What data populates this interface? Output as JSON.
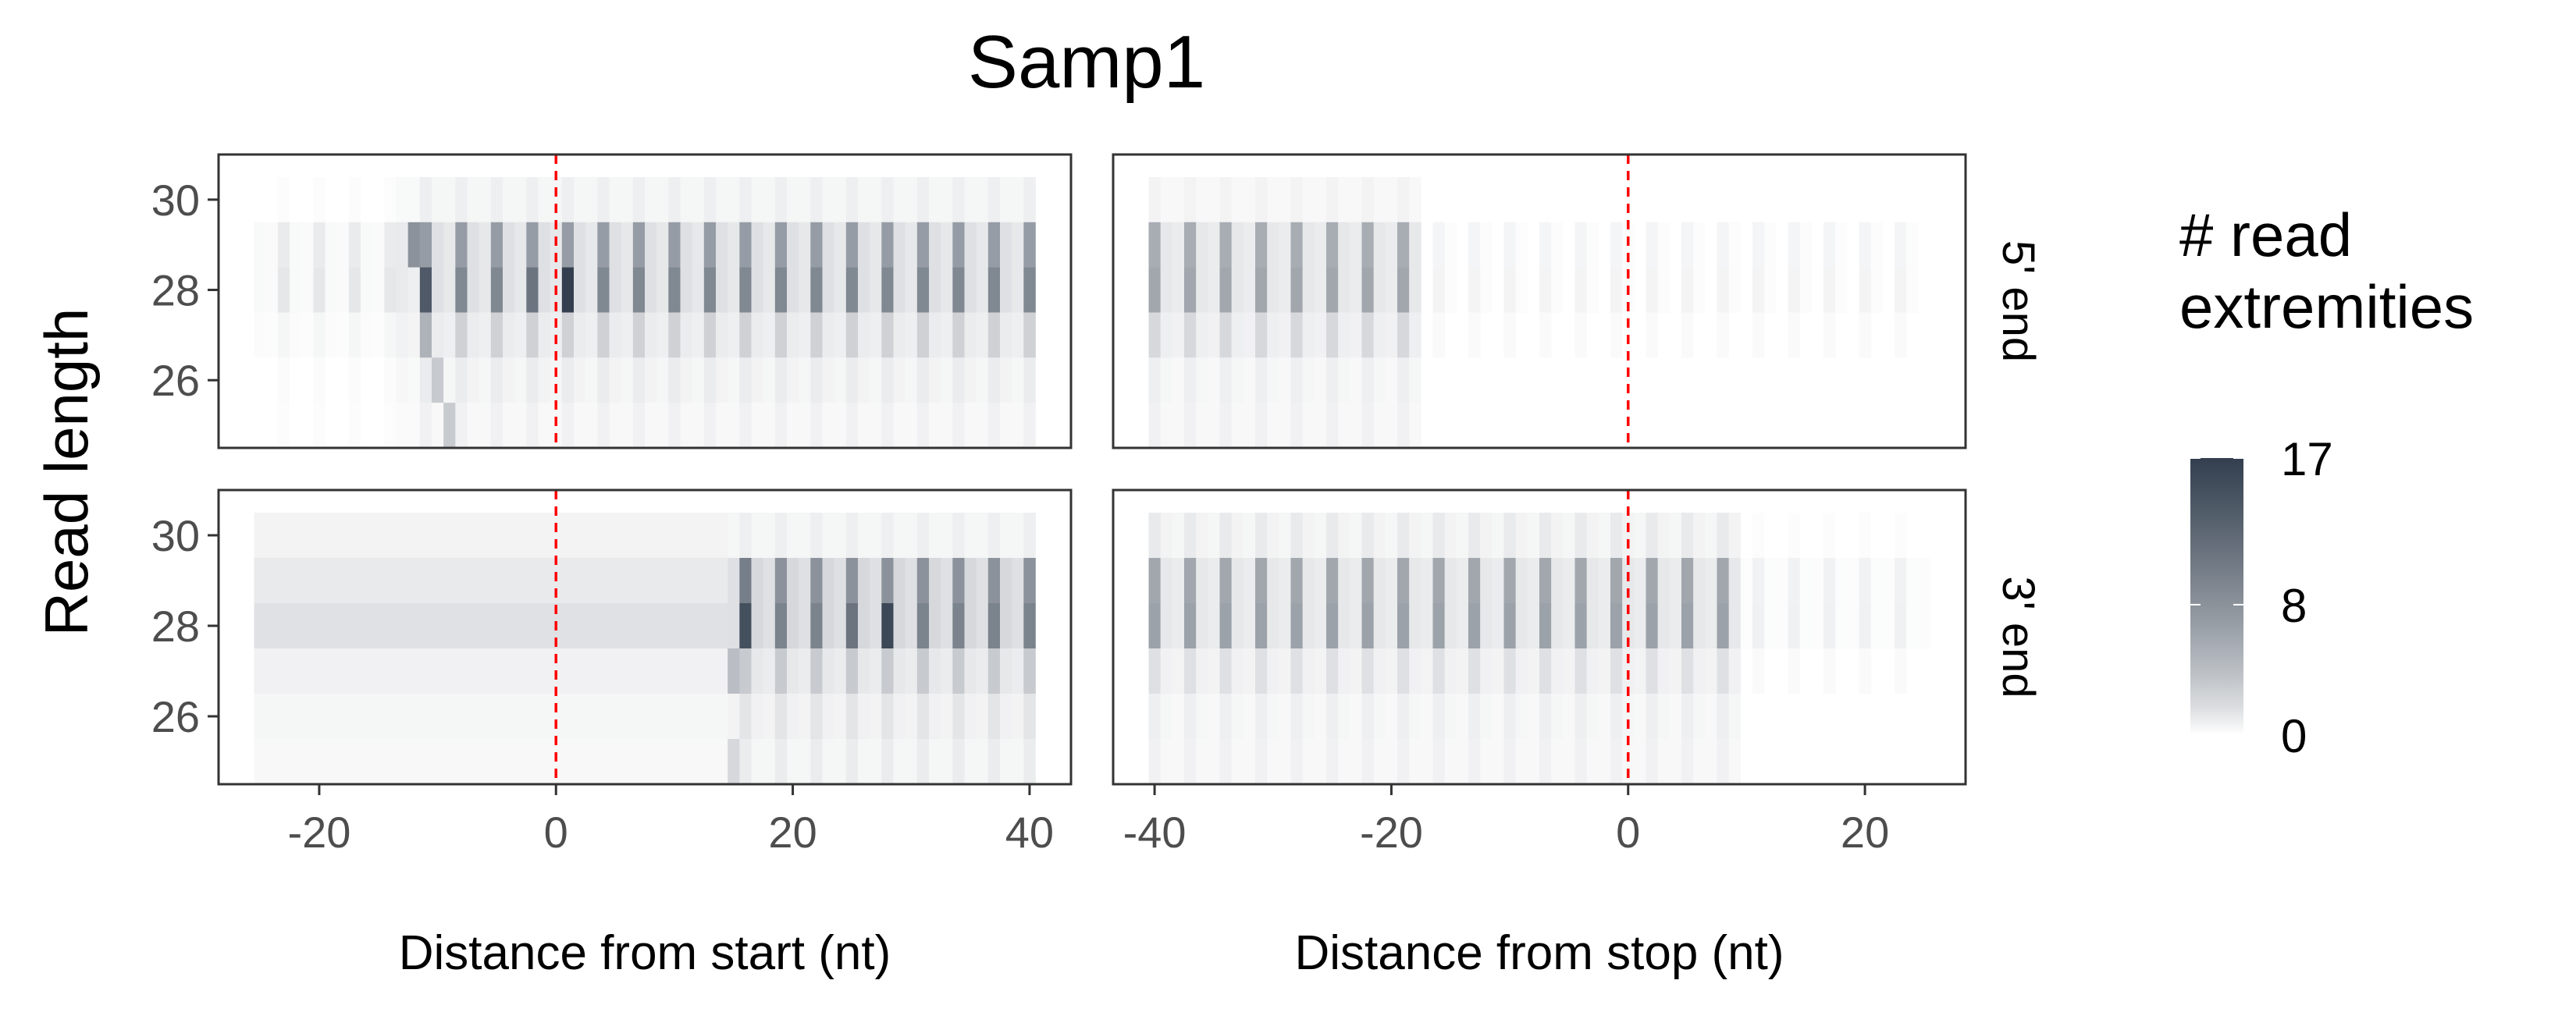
{
  "chart_data": {
    "type": "heatmap",
    "title": "Samp1",
    "ylabel": "Read length",
    "ylim": [
      24.5,
      31
    ],
    "y_ticks": [
      26,
      28,
      30
    ],
    "legend": {
      "title_lines": [
        "# read",
        "extremities"
      ],
      "ticks": [
        0,
        8,
        17
      ],
      "min": 0,
      "max": 17,
      "colors": [
        "#ffffff",
        "#333f4f"
      ],
      "placement": "right"
    },
    "x_panels": [
      {
        "xlabel": "Distance from start (nt)",
        "xlim": [
          -28.5,
          43.5
        ],
        "x_ticks": [
          -20,
          0,
          20,
          40
        ],
        "marker_x": 0
      },
      {
        "xlabel": "Distance from stop (nt)",
        "xlim": [
          -43.5,
          28.5
        ],
        "x_ticks": [
          -40,
          -20,
          0,
          20
        ],
        "marker_x": 0
      }
    ],
    "row_strips": [
      "5' end",
      "3' end"
    ],
    "marker_color": "#ff0000",
    "panels": [
      {
        "row": "5' end",
        "col": "Distance from start (nt)",
        "x_range": [
          -25,
          40
        ],
        "y_range": [
          25,
          30
        ],
        "frame_offset": 1,
        "profile": [
          {
            "y": 30,
            "start": -25,
            "frames": [
              0.6,
              0.3,
              0.3
            ]
          },
          {
            "y": 29,
            "start": -25,
            "frames": [
              7.0,
              1.5,
              1.0
            ]
          },
          {
            "y": 28,
            "start": -25,
            "frames": [
              9.0,
              1.5,
              1.0
            ]
          },
          {
            "y": 27,
            "start": -25,
            "frames": [
              2.5,
              0.8,
              0.6
            ]
          },
          {
            "y": 26,
            "start": -25,
            "frames": [
              0.8,
              0.4,
              0.3
            ]
          },
          {
            "y": 25,
            "start": -25,
            "frames": [
              0.5,
              0.2,
              0.2
            ]
          }
        ],
        "pre_scale": 0.12,
        "ramp": [
          -13,
          -11
        ],
        "highlights": [
          {
            "x": 1,
            "y": 28,
            "value": 17
          },
          {
            "x": -11,
            "y": 28,
            "value": 14
          },
          {
            "x": -12,
            "y": 29,
            "value": 8
          },
          {
            "x": -2,
            "y": 28,
            "value": 11
          },
          {
            "x": -11,
            "y": 27,
            "value": 5
          },
          {
            "x": -10,
            "y": 26,
            "value": 3
          },
          {
            "x": -9,
            "y": 25,
            "value": 3
          }
        ]
      },
      {
        "row": "5' end",
        "col": "Distance from stop (nt)",
        "x_range": [
          -40,
          25
        ],
        "y_range": [
          25,
          30
        ],
        "frame_offset": 2,
        "profile": [
          {
            "y": 30,
            "start": -40,
            "frames": [
              0.4,
              0.2,
              0.2
            ]
          },
          {
            "y": 29,
            "start": -40,
            "frames": [
              5.5,
              1.0,
              0.8
            ]
          },
          {
            "y": 28,
            "start": -40,
            "frames": [
              6.0,
              1.0,
              0.8
            ]
          },
          {
            "y": 27,
            "start": -40,
            "frames": [
              2.0,
              0.6,
              0.5
            ]
          },
          {
            "y": 26,
            "start": -40,
            "frames": [
              0.6,
              0.3,
              0.2
            ]
          },
          {
            "y": 25,
            "start": -40,
            "frames": [
              0.5,
              0.2,
              0.2
            ]
          }
        ],
        "post_cut": -18,
        "post_scale": 0.06,
        "highlights": []
      },
      {
        "row": "3' end",
        "col": "Distance from start (nt)",
        "x_range": [
          -25,
          40
        ],
        "y_range": [
          25,
          30
        ],
        "frame_offset": 1,
        "profile": [
          {
            "y": 30,
            "start": -25,
            "frames": [
              0.6,
              0.3,
              0.3
            ]
          },
          {
            "y": 29,
            "start": -25,
            "frames": [
              8.0,
              2.0,
              1.5
            ]
          },
          {
            "y": 28,
            "start": -25,
            "frames": [
              9.5,
              2.0,
              1.5
            ]
          },
          {
            "y": 27,
            "start": -25,
            "frames": [
              3.0,
              1.0,
              0.8
            ]
          },
          {
            "y": 26,
            "start": -25,
            "frames": [
              1.2,
              0.5,
              0.4
            ]
          },
          {
            "y": 25,
            "start": -25,
            "frames": [
              0.8,
              0.3,
              0.3
            ]
          }
        ],
        "pre_cut": 15,
        "pre_values": {
          "29": 0.9,
          "28": 1.4,
          "27": 0.5,
          "30": 0.4,
          "26": 0.3,
          "25": 0.2
        },
        "highlights": [
          {
            "x": 16,
            "y": 28,
            "value": 15
          },
          {
            "x": 28,
            "y": 28,
            "value": 16
          },
          {
            "x": 25,
            "y": 28,
            "value": 11
          },
          {
            "x": 16,
            "y": 29,
            "value": 10
          },
          {
            "x": 15,
            "y": 27,
            "value": 4
          },
          {
            "x": 15,
            "y": 25,
            "value": 2
          }
        ]
      },
      {
        "row": "3' end",
        "col": "Distance from stop (nt)",
        "x_range": [
          -40,
          25
        ],
        "y_range": [
          25,
          30
        ],
        "frame_offset": 2,
        "profile": [
          {
            "y": 30,
            "start": -40,
            "frames": [
              0.9,
              0.4,
              0.3
            ]
          },
          {
            "y": 29,
            "start": -40,
            "frames": [
              6.0,
              1.0,
              0.8
            ]
          },
          {
            "y": 28,
            "start": -40,
            "frames": [
              6.5,
              1.0,
              0.8
            ]
          },
          {
            "y": 27,
            "start": -40,
            "frames": [
              1.5,
              0.5,
              0.4
            ]
          },
          {
            "y": 26,
            "start": -40,
            "frames": [
              0.6,
              0.3,
              0.2
            ]
          },
          {
            "y": 25,
            "start": -40,
            "frames": [
              0.5,
              0.2,
              0.2
            ]
          }
        ],
        "post_cut": 9,
        "post_scale": 0.08,
        "highlights": []
      }
    ]
  }
}
